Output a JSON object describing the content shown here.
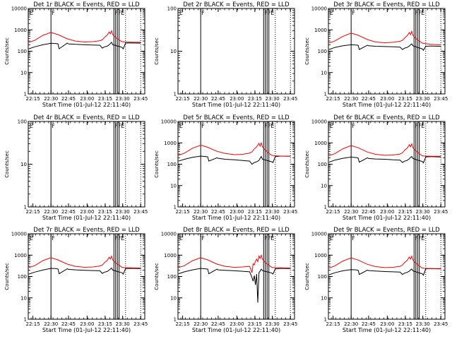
{
  "figure": {
    "background": "#ffffff",
    "events_color": "#000000",
    "lld_color": "#ff0000"
  },
  "chart_data": [
    {
      "type": "line",
      "title": "Det 1r BLACK = Events, RED = LLD",
      "xlabel": "Start Time (01-Jul-12 22:11:40)",
      "ylabel": "Counts/sec",
      "y_scale": "log",
      "ylim": [
        1,
        10000
      ],
      "x_ticks": [
        "22:15",
        "22:30",
        "22:45",
        "23:00",
        "23:15",
        "23:30",
        "23:45"
      ],
      "y_ticks": [
        "1",
        "10",
        "100",
        "1000",
        "10000"
      ],
      "x_unit": "minutes after 22:00",
      "flags": "E F F F E",
      "series": [
        {
          "name": "Events",
          "color": "#000000",
          "x": [
            10,
            15,
            22,
            29,
            33,
            35,
            36,
            43,
            44,
            50,
            58,
            65,
            71,
            73,
            75,
            77,
            79,
            80,
            81,
            82,
            84,
            86,
            88,
            90,
            91,
            93,
            98,
            103,
            106
          ],
          "y": [
            130,
            160,
            200,
            235,
            230,
            220,
            130,
            240,
            220,
            210,
            200,
            195,
            190,
            140,
            160,
            170,
            200,
            230,
            260,
            200,
            190,
            175,
            165,
            150,
            130,
            240,
            245,
            240,
            240
          ]
        },
        {
          "name": "LLD",
          "color": "#ff0000",
          "x": [
            10,
            15,
            22,
            29,
            35,
            43,
            50,
            58,
            65,
            71,
            73,
            75,
            77,
            79,
            80,
            81,
            82,
            84,
            86,
            88,
            90,
            92,
            98,
            103,
            106
          ],
          "y": [
            260,
            320,
            550,
            760,
            600,
            380,
            300,
            270,
            280,
            310,
            340,
            450,
            550,
            800,
            650,
            900,
            600,
            470,
            380,
            320,
            280,
            270,
            265,
            260,
            260
          ]
        }
      ]
    },
    {
      "type": "line",
      "title": "Det 2r BLACK = Events, RED = LLD",
      "xlabel": "Start Time (01-Jul-12 22:11:40)",
      "ylabel": "Counts/sec",
      "y_scale": "log",
      "ylim": [
        1,
        100
      ],
      "x_ticks": [
        "22:15",
        "22:30",
        "22:45",
        "23:00",
        "23:15",
        "23:30",
        "23:45"
      ],
      "y_ticks": [
        "1",
        "10",
        "100"
      ],
      "x_unit": "minutes after 22:00",
      "flags": "E F FFE",
      "series": []
    },
    {
      "type": "line",
      "title": "Det 3r BLACK = Events, RED = LLD",
      "xlabel": "Start Time (01-Jul-12 22:11:40)",
      "ylabel": "Counts/sec",
      "y_scale": "log",
      "ylim": [
        1,
        10000
      ],
      "x_ticks": [
        "22:15",
        "22:30",
        "22:45",
        "23:00",
        "23:15",
        "23:30",
        "23:45"
      ],
      "y_ticks": [
        "1",
        "10",
        "100",
        "1000",
        "10000"
      ],
      "x_unit": "minutes after 22:00",
      "flags": "E F FFE",
      "series": [
        {
          "name": "Events",
          "color": "#000000",
          "x": [
            10,
            15,
            22,
            29,
            33,
            35,
            36,
            43,
            44,
            50,
            58,
            65,
            71,
            73,
            75,
            77,
            79,
            80,
            81,
            82,
            84,
            86,
            88,
            90,
            91,
            93,
            98,
            103,
            106
          ],
          "y": [
            120,
            150,
            180,
            200,
            195,
            190,
            120,
            190,
            180,
            170,
            165,
            160,
            155,
            120,
            140,
            150,
            175,
            200,
            220,
            180,
            165,
            150,
            140,
            130,
            110,
            170,
            175,
            170,
            170
          ]
        },
        {
          "name": "LLD",
          "color": "#ff0000",
          "x": [
            10,
            15,
            22,
            29,
            35,
            43,
            50,
            58,
            65,
            71,
            73,
            75,
            77,
            79,
            80,
            81,
            82,
            84,
            86,
            88,
            90,
            92,
            98,
            103,
            106
          ],
          "y": [
            240,
            300,
            500,
            700,
            560,
            350,
            270,
            250,
            260,
            290,
            320,
            420,
            520,
            750,
            600,
            850,
            560,
            420,
            340,
            290,
            240,
            230,
            210,
            200,
            200
          ]
        }
      ]
    },
    {
      "type": "line",
      "title": "Det 4r BLACK = Events, RED = LLD",
      "xlabel": "Start Time (01-Jul-12 22:11:40)",
      "ylabel": "Counts/sec",
      "y_scale": "log",
      "ylim": [
        1,
        100
      ],
      "x_ticks": [
        "22:15",
        "22:30",
        "22:45",
        "23:00",
        "23:15",
        "23:30",
        "23:45"
      ],
      "y_ticks": [
        "1",
        "10",
        "100"
      ],
      "x_unit": "minutes after 22:00",
      "flags": "E F FFE",
      "series": []
    },
    {
      "type": "line",
      "title": "Det 5r BLACK = Events, RED = LLD",
      "xlabel": "Start Time (01-Jul-12 22:11:40)",
      "ylabel": "Counts/sec",
      "y_scale": "log",
      "ylim": [
        1,
        10000
      ],
      "x_ticks": [
        "22:15",
        "22:30",
        "22:45",
        "23:00",
        "23:15",
        "23:30",
        "23:45"
      ],
      "y_ticks": [
        "1",
        "10",
        "100",
        "1000",
        "10000"
      ],
      "x_unit": "minutes after 22:00",
      "flags": "E F FFE",
      "series": [
        {
          "name": "Events",
          "color": "#000000",
          "x": [
            10,
            15,
            22,
            29,
            33,
            35,
            36,
            43,
            44,
            50,
            58,
            65,
            71,
            73,
            75,
            77,
            79,
            80,
            81,
            82,
            84,
            86,
            88,
            90,
            91,
            93,
            98,
            103,
            106
          ],
          "y": [
            140,
            170,
            210,
            240,
            230,
            220,
            140,
            200,
            190,
            170,
            160,
            150,
            140,
            100,
            120,
            130,
            150,
            190,
            230,
            170,
            160,
            150,
            140,
            130,
            120,
            230,
            240,
            235,
            235
          ]
        },
        {
          "name": "LLD",
          "color": "#ff0000",
          "x": [
            10,
            15,
            22,
            29,
            35,
            43,
            50,
            58,
            65,
            71,
            73,
            75,
            77,
            79,
            80,
            81,
            82,
            84,
            86,
            88,
            90,
            92,
            98,
            103,
            106
          ],
          "y": [
            260,
            330,
            560,
            780,
            620,
            400,
            320,
            280,
            290,
            330,
            380,
            520,
            650,
            950,
            700,
            1000,
            650,
            480,
            380,
            310,
            260,
            250,
            240,
            240,
            240
          ]
        }
      ]
    },
    {
      "type": "line",
      "title": "Det 6r BLACK = Events, RED = LLD",
      "xlabel": "Start Time (01-Jul-12 22:11:40)",
      "ylabel": "Counts/sec",
      "y_scale": "log",
      "ylim": [
        1,
        10000
      ],
      "x_ticks": [
        "22:15",
        "22:30",
        "22:45",
        "23:00",
        "23:15",
        "23:30",
        "23:45"
      ],
      "y_ticks": [
        "1",
        "10",
        "100",
        "1000",
        "10000"
      ],
      "x_unit": "minutes after 22:00",
      "flags": "E F FFE",
      "series": [
        {
          "name": "Events",
          "color": "#000000",
          "x": [
            10,
            15,
            22,
            29,
            33,
            35,
            36,
            43,
            44,
            50,
            58,
            65,
            71,
            73,
            75,
            77,
            79,
            80,
            81,
            82,
            84,
            86,
            88,
            90,
            91,
            93,
            98,
            103,
            106
          ],
          "y": [
            125,
            155,
            190,
            215,
            205,
            195,
            125,
            200,
            185,
            175,
            170,
            160,
            155,
            120,
            140,
            150,
            180,
            210,
            230,
            185,
            170,
            155,
            145,
            135,
            115,
            220,
            225,
            220,
            220
          ]
        },
        {
          "name": "LLD",
          "color": "#ff0000",
          "x": [
            10,
            15,
            22,
            29,
            35,
            43,
            50,
            58,
            65,
            71,
            73,
            75,
            77,
            79,
            80,
            81,
            82,
            84,
            86,
            88,
            90,
            92,
            98,
            103,
            106
          ],
          "y": [
            250,
            310,
            530,
            740,
            590,
            370,
            290,
            260,
            270,
            300,
            340,
            460,
            560,
            820,
            650,
            900,
            600,
            450,
            360,
            300,
            250,
            240,
            235,
            235,
            235
          ]
        }
      ]
    },
    {
      "type": "line",
      "title": "Det 7r BLACK = Events, RED = LLD",
      "xlabel": "Start Time (01-Jul-12 22:11:40)",
      "ylabel": "Counts/sec",
      "y_scale": "log",
      "ylim": [
        1,
        10000
      ],
      "x_ticks": [
        "22:15",
        "22:30",
        "22:45",
        "23:00",
        "23:15",
        "23:30",
        "23:45"
      ],
      "y_ticks": [
        "1",
        "10",
        "100",
        "1000",
        "10000"
      ],
      "x_unit": "minutes after 22:00",
      "flags": "E F FFE",
      "series": [
        {
          "name": "Events",
          "color": "#000000",
          "x": [
            10,
            15,
            22,
            29,
            33,
            35,
            36,
            43,
            44,
            50,
            58,
            65,
            71,
            73,
            75,
            77,
            79,
            80,
            81,
            82,
            84,
            86,
            88,
            90,
            91,
            93,
            98,
            103,
            106
          ],
          "y": [
            130,
            160,
            200,
            240,
            235,
            225,
            135,
            230,
            215,
            205,
            195,
            190,
            185,
            140,
            160,
            170,
            200,
            225,
            250,
            200,
            185,
            170,
            160,
            150,
            130,
            235,
            240,
            235,
            235
          ]
        },
        {
          "name": "LLD",
          "color": "#ff0000",
          "x": [
            10,
            15,
            22,
            29,
            35,
            43,
            50,
            58,
            65,
            71,
            73,
            75,
            77,
            79,
            80,
            81,
            82,
            84,
            86,
            88,
            90,
            92,
            98,
            103,
            106
          ],
          "y": [
            260,
            320,
            550,
            760,
            600,
            380,
            300,
            270,
            280,
            310,
            340,
            450,
            550,
            800,
            650,
            900,
            600,
            470,
            380,
            320,
            270,
            260,
            255,
            250,
            250
          ]
        }
      ]
    },
    {
      "type": "line",
      "title": "Det 8r BLACK = Events, RED = LLD",
      "xlabel": "Start Time (01-Jul-12 22:11:40)",
      "ylabel": "Counts/sec",
      "y_scale": "log",
      "ylim": [
        1,
        10000
      ],
      "x_ticks": [
        "22:15",
        "22:30",
        "22:45",
        "23:00",
        "23:15",
        "23:30",
        "23:45"
      ],
      "y_ticks": [
        "1",
        "10",
        "100",
        "1000",
        "10000"
      ],
      "x_unit": "minutes after 22:00",
      "flags": "E F FFE",
      "series": [
        {
          "name": "Events",
          "color": "#000000",
          "x": [
            10,
            15,
            22,
            29,
            33,
            35,
            36,
            43,
            44,
            50,
            58,
            65,
            71,
            73,
            74,
            75,
            76,
            77,
            78,
            79,
            80,
            81,
            82,
            84,
            86,
            88,
            90,
            91,
            93,
            98,
            103,
            106
          ],
          "y": [
            135,
            165,
            205,
            240,
            230,
            220,
            135,
            220,
            205,
            195,
            185,
            175,
            165,
            90,
            60,
            110,
            40,
            130,
            6,
            150,
            180,
            220,
            190,
            175,
            165,
            155,
            145,
            130,
            230,
            240,
            235,
            235
          ]
        },
        {
          "name": "LLD",
          "color": "#ff0000",
          "x": [
            10,
            15,
            22,
            29,
            35,
            43,
            50,
            58,
            65,
            71,
            73,
            74,
            75,
            76,
            77,
            78,
            79,
            80,
            81,
            82,
            84,
            86,
            88,
            90,
            92,
            98,
            103,
            106
          ],
          "y": [
            260,
            320,
            550,
            760,
            600,
            380,
            300,
            270,
            280,
            300,
            150,
            400,
            350,
            520,
            650,
            500,
            900,
            700,
            1000,
            650,
            480,
            380,
            320,
            270,
            260,
            255,
            250,
            250
          ]
        }
      ]
    },
    {
      "type": "line",
      "title": "Det 9r BLACK = Events, RED = LLD",
      "xlabel": "Start Time (01-Jul-12 22:11:40)",
      "ylabel": "Counts/sec",
      "y_scale": "log",
      "ylim": [
        1,
        10000
      ],
      "x_ticks": [
        "22:15",
        "22:30",
        "22:45",
        "23:00",
        "23:15",
        "23:30",
        "23:45"
      ],
      "y_ticks": [
        "1",
        "10",
        "100",
        "1000",
        "10000"
      ],
      "x_unit": "minutes after 22:00",
      "flags": "E F FFE",
      "series": [
        {
          "name": "Events",
          "color": "#000000",
          "x": [
            10,
            15,
            22,
            29,
            33,
            35,
            36,
            43,
            44,
            50,
            58,
            65,
            71,
            73,
            75,
            77,
            79,
            80,
            81,
            82,
            84,
            86,
            88,
            90,
            91,
            93,
            98,
            103,
            106
          ],
          "y": [
            120,
            150,
            185,
            210,
            205,
            195,
            125,
            200,
            190,
            180,
            170,
            165,
            160,
            125,
            145,
            155,
            180,
            205,
            225,
            185,
            170,
            155,
            145,
            135,
            115,
            230,
            235,
            230,
            230
          ]
        },
        {
          "name": "LLD",
          "color": "#ff0000",
          "x": [
            10,
            15,
            22,
            29,
            35,
            43,
            50,
            58,
            65,
            71,
            73,
            75,
            77,
            79,
            80,
            81,
            82,
            84,
            86,
            88,
            90,
            92,
            98,
            103,
            106
          ],
          "y": [
            250,
            310,
            530,
            740,
            590,
            370,
            290,
            260,
            270,
            300,
            340,
            460,
            560,
            820,
            650,
            900,
            600,
            450,
            360,
            300,
            250,
            240,
            235,
            235,
            235
          ]
        }
      ]
    }
  ]
}
